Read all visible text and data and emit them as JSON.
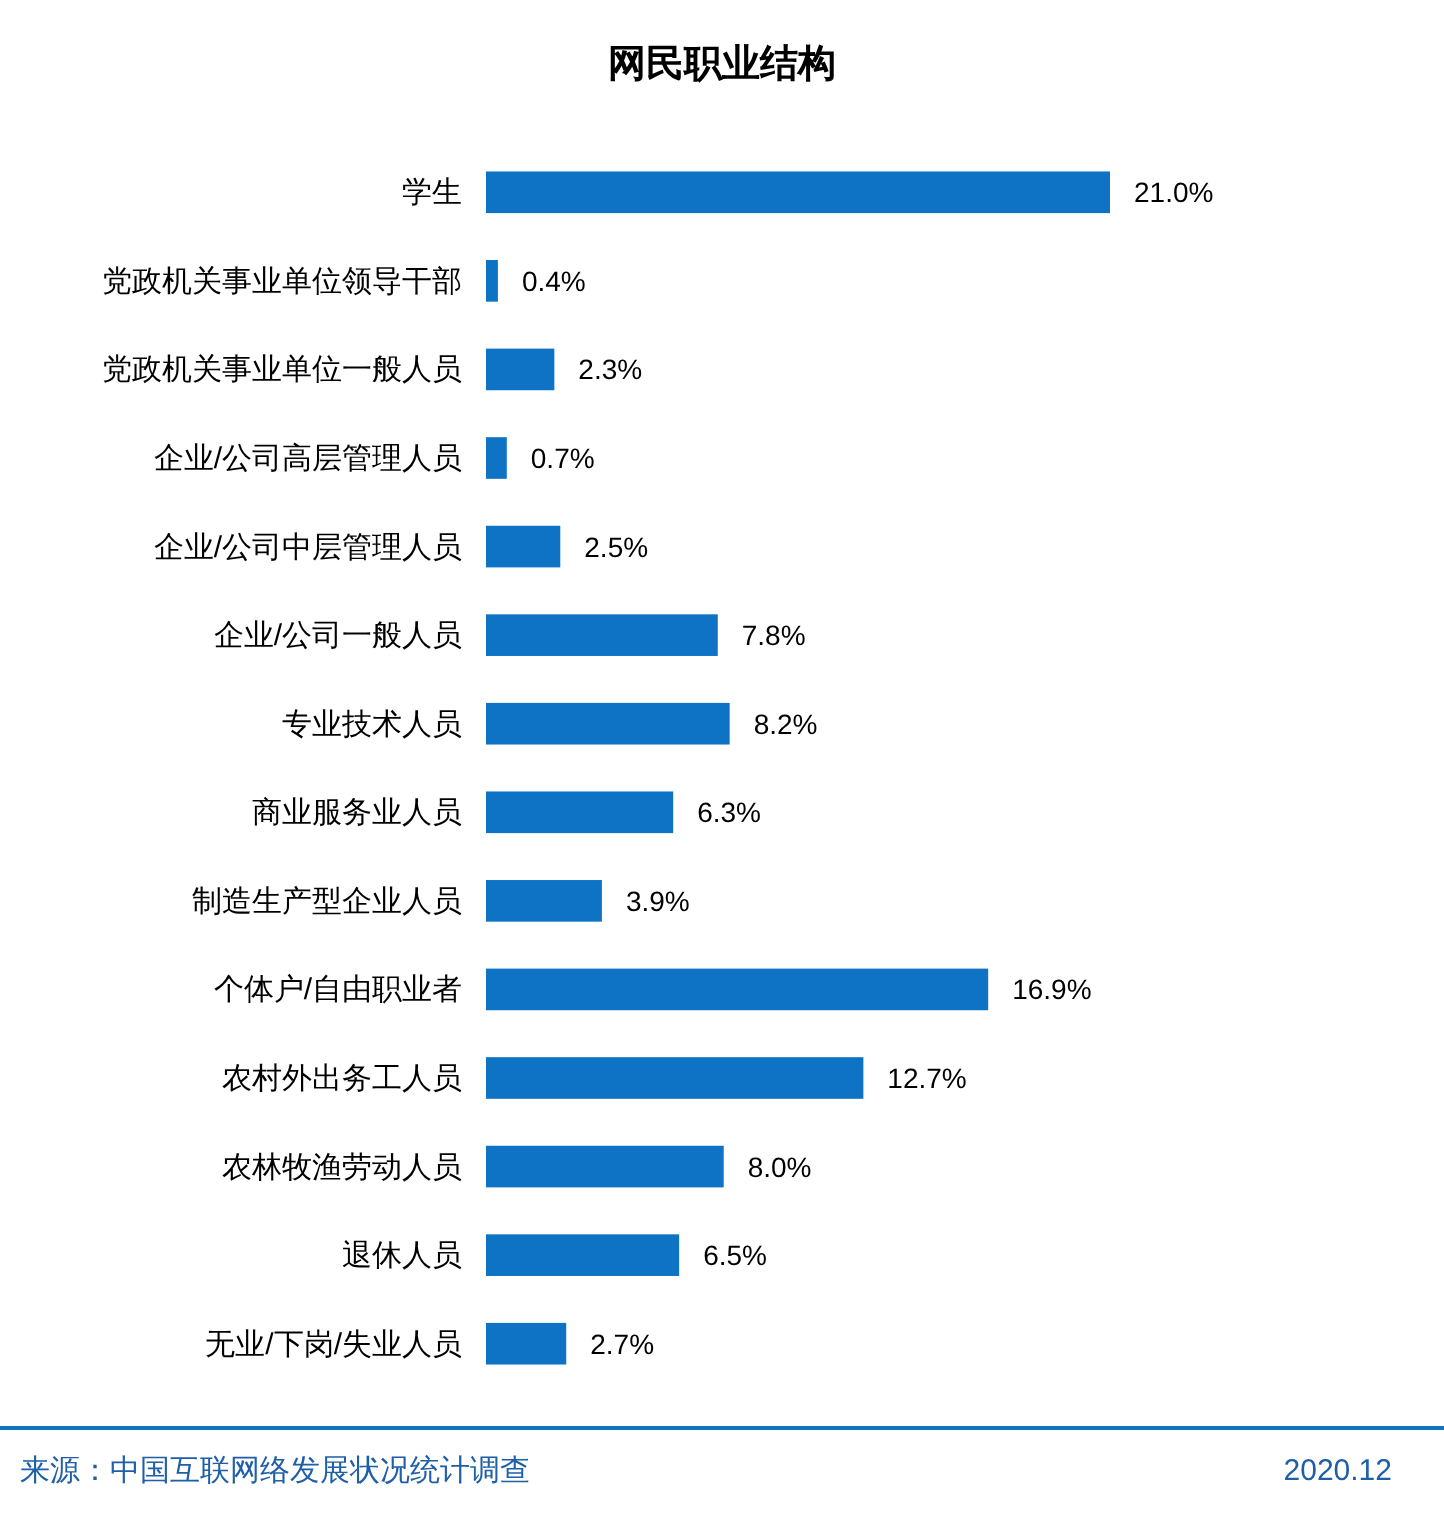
{
  "chart_data": {
    "type": "bar",
    "orientation": "horizontal",
    "title": "网民职业结构",
    "categories": [
      "学生",
      "党政机关事业单位领导干部",
      "党政机关事业单位一般人员",
      "企业/公司高层管理人员",
      "企业/公司中层管理人员",
      "企业/公司一般人员",
      "专业技术人员",
      "商业服务业人员",
      "制造生产型企业人员",
      "个体户/自由职业者",
      "农村外出务工人员",
      "农林牧渔劳动人员",
      "退休人员",
      "无业/下岗/失业人员"
    ],
    "values": [
      21.0,
      0.4,
      2.3,
      0.7,
      2.5,
      7.8,
      8.2,
      6.3,
      3.9,
      16.9,
      12.7,
      8.0,
      6.5,
      2.7
    ],
    "value_labels": [
      "21.0%",
      "0.4%",
      "2.3%",
      "0.7%",
      "2.5%",
      "7.8%",
      "8.2%",
      "6.3%",
      "3.9%",
      "16.9%",
      "12.7%",
      "8.0%",
      "6.5%",
      "2.7%"
    ],
    "color": "#0e72c5",
    "annotations": [
      "来源：中国互联网络发展状况统计调查",
      "2020.12"
    ]
  }
}
